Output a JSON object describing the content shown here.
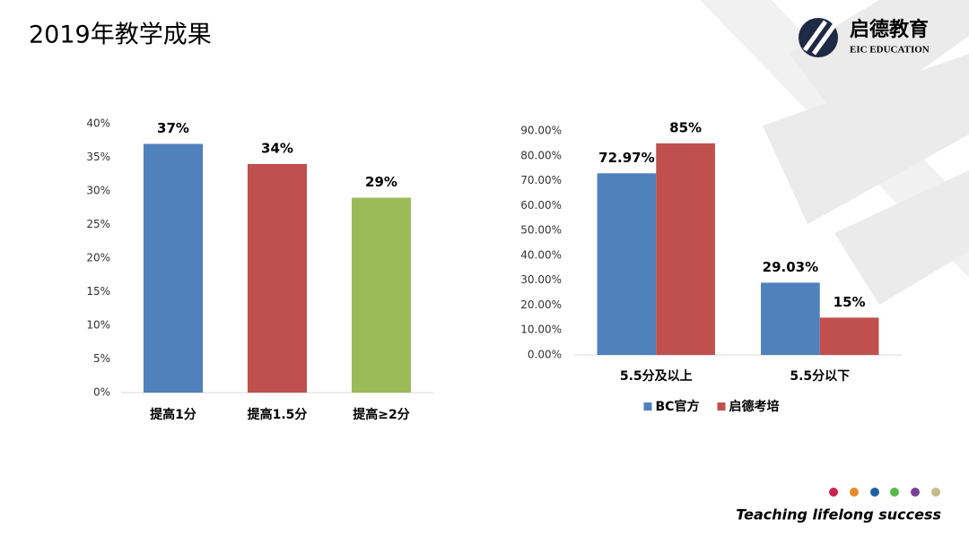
{
  "title": "2019年教学成果",
  "logo": {
    "name": "启德教育",
    "subtitle": "EIC EDUCATION"
  },
  "tagline": "Teaching lifelong success",
  "chart_data": [
    {
      "type": "bar",
      "categories": [
        "提高1分",
        "提高1.5分",
        "提高≥2分"
      ],
      "values": [
        37,
        34,
        29
      ],
      "value_labels": [
        "37%",
        "34%",
        "29%"
      ],
      "colors": [
        "#4f81bd",
        "#c0504d",
        "#9bbb59"
      ],
      "ylim": [
        0,
        40
      ],
      "yticks": [
        {
          "value": 0,
          "label": "0%"
        },
        {
          "value": 5,
          "label": "5%"
        },
        {
          "value": 10,
          "label": "10%"
        },
        {
          "value": 15,
          "label": "15%"
        },
        {
          "value": 20,
          "label": "20%"
        },
        {
          "value": 25,
          "label": "25%"
        },
        {
          "value": 30,
          "label": "30%"
        },
        {
          "value": 35,
          "label": "35%"
        },
        {
          "value": 40,
          "label": "40%"
        }
      ],
      "grid": false
    },
    {
      "type": "bar",
      "categories": [
        "5.5分及以上",
        "5.5分以下"
      ],
      "series": [
        {
          "name": "BC官方",
          "color": "#4f81bd",
          "values": [
            72.97,
            29.03
          ],
          "value_labels": [
            "72.97%",
            "29.03%"
          ]
        },
        {
          "name": "启德考培",
          "color": "#c0504d",
          "values": [
            85,
            15
          ],
          "value_labels": [
            "85%",
            "15%"
          ]
        }
      ],
      "ylim": [
        0,
        90
      ],
      "yticks": [
        {
          "value": 0,
          "label": "0.00%"
        },
        {
          "value": 10,
          "label": "10.00%"
        },
        {
          "value": 20,
          "label": "20.00%"
        },
        {
          "value": 30,
          "label": "30.00%"
        },
        {
          "value": 40,
          "label": "40.00%"
        },
        {
          "value": 50,
          "label": "50.00%"
        },
        {
          "value": 60,
          "label": "60.00%"
        },
        {
          "value": 70,
          "label": "70.00%"
        },
        {
          "value": 80,
          "label": "80.00%"
        },
        {
          "value": 90,
          "label": "90.00%"
        }
      ],
      "grid": false,
      "legend": "bottom"
    }
  ]
}
